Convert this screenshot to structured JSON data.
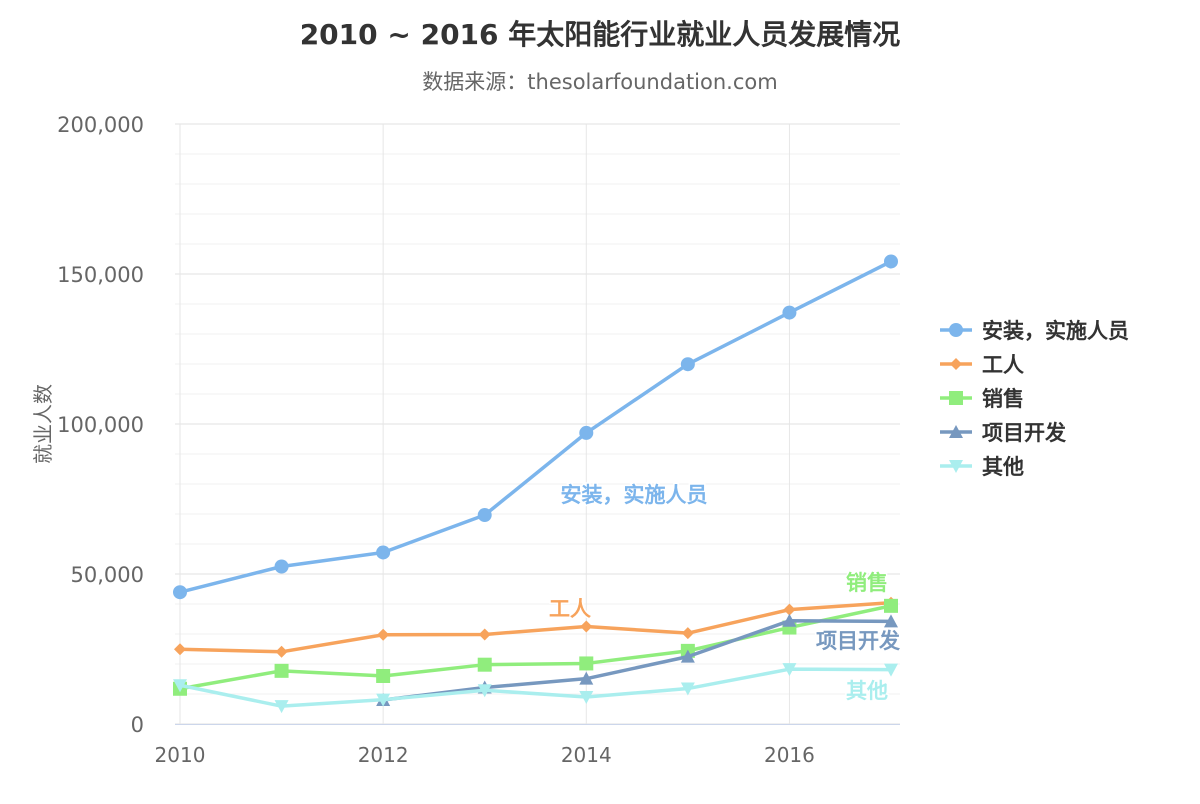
{
  "chart_data": {
    "type": "line",
    "title": "2010 ~ 2016 年太阳能行业就业人员发展情况",
    "subtitle": "数据来源：thesolarfoundation.com",
    "ylabel": "就业人数",
    "xlabel": "",
    "x": [
      2010,
      2011,
      2012,
      2013,
      2014,
      2015,
      2016,
      2017
    ],
    "xticks": [
      "2010",
      "2012",
      "2014",
      "2016"
    ],
    "xlim": [
      2010,
      2017
    ],
    "ylim": [
      0,
      200000
    ],
    "yticks": [
      "0",
      "50,000",
      "100,000",
      "150,000",
      "200,000"
    ],
    "grid": true,
    "legend_position": "right",
    "series": [
      {
        "name": "安装，实施人员",
        "color": "#7cb5ec",
        "marker": "circle",
        "values": [
          43934,
          52503,
          57177,
          69658,
          97031,
          119931,
          137133,
          154175
        ]
      },
      {
        "name": "工人",
        "color": "#f7a35c",
        "marker": "diamond",
        "values": [
          24916,
          24064,
          29742,
          29851,
          32490,
          30282,
          38121,
          40434
        ]
      },
      {
        "name": "销售",
        "color": "#90ed7d",
        "marker": "square",
        "values": [
          11744,
          17722,
          16005,
          19771,
          20185,
          24377,
          32147,
          39387
        ]
      },
      {
        "name": "项目开发",
        "color": "#7798bf",
        "marker": "triangle",
        "values": [
          null,
          null,
          7988,
          12169,
          15112,
          22452,
          34400,
          34227
        ]
      },
      {
        "name": "其他",
        "color": "#aaeeee",
        "marker": "triangle-down",
        "values": [
          12908,
          5948,
          8105,
          11248,
          8989,
          11816,
          18274,
          18111
        ]
      }
    ]
  }
}
